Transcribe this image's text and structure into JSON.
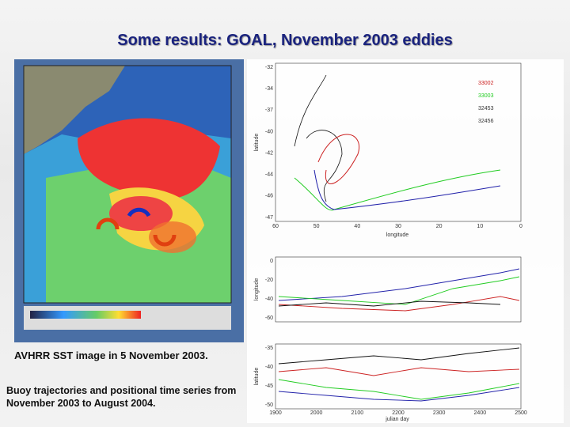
{
  "title": "Some results: GOAL, November 2003 eddies",
  "sst_caption": "AVHRR SST image in 5 November 2003.",
  "plots_caption": "Buoy trajectories and positional time series from November 2003 to August 2004.",
  "trajectory_plot": {
    "x_label": "longitude",
    "y_label": "latitude",
    "legend": [
      "33002",
      "33003",
      "32453",
      "32456"
    ],
    "xticks": [
      "60",
      "50",
      "40",
      "30",
      "20",
      "10",
      "0"
    ],
    "yticks": [
      "-32",
      "-34",
      "-37",
      "-40",
      "-42",
      "-44",
      "-46",
      "-47"
    ]
  },
  "longitude_plot": {
    "y_label": "longitude",
    "yticks": [
      "0",
      "-20",
      "-40",
      "-60"
    ]
  },
  "latitude_plot": {
    "y_label": "latitude",
    "x_label": "julian day",
    "yticks": [
      "-35",
      "-40",
      "-45",
      "-50"
    ],
    "xticks": [
      "1900",
      "2000",
      "2100",
      "2200",
      "2300",
      "2400",
      "2500"
    ]
  }
}
